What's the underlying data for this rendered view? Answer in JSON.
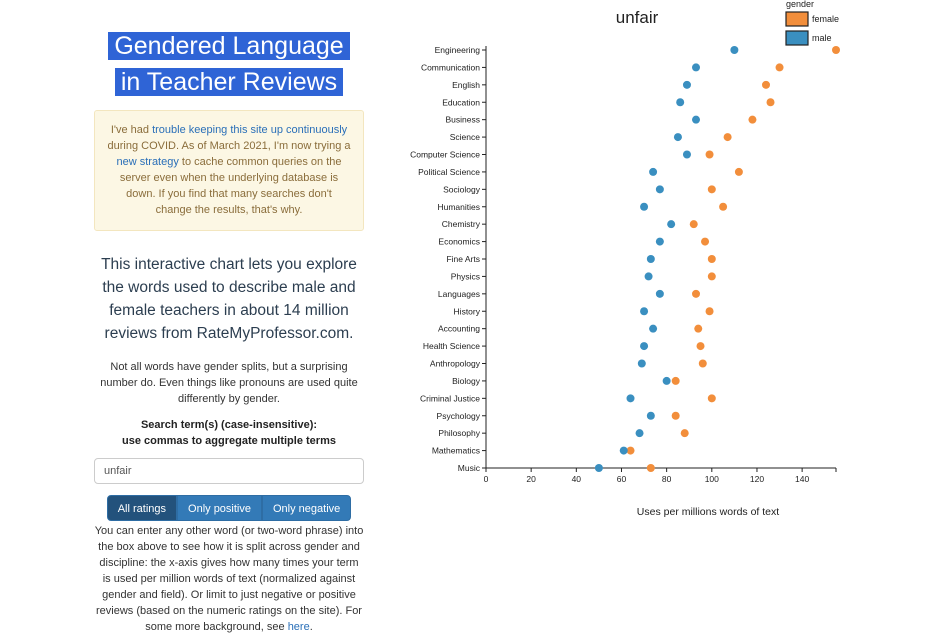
{
  "page": {
    "title_line1": "Gendered Language",
    "title_line2": "in Teacher Reviews",
    "notice": {
      "t1": "I've had ",
      "link1": "trouble keeping this site up continuously",
      "t2": " during COVID. As of March 2021, I'm now trying a ",
      "link2": "new strategy",
      "t3": " to cache common queries on the server even when the underlying database is down. If you find that many searches don't change the results, that's why."
    },
    "intro": "This interactive chart lets you explore the words used to describe male and female teachers in about 14 million reviews from RateMyProfessor.com.",
    "note": "Not all words have gender splits, but a surprising number do. Even things like pronouns are used quite differently by gender.",
    "search_label_1": "Search term(s) (case-insensitive):",
    "search_label_2": "use commas to aggregate multiple terms",
    "search_value": "unfair",
    "buttons": [
      "All ratings",
      "Only positive",
      "Only negative"
    ],
    "description": "You can enter any other word (or two-word phrase) into the box above to see how it is split across gender and discipline: the x-axis gives how many times your term is used per million words of text (normalized against gender and field). Or limit to just negative or positive reviews (based on the numeric ratings on the site). For some more background, see ",
    "description_link": "here",
    "description_end": "."
  },
  "colors": {
    "female": "#f28e3b",
    "male": "#3a8fc0",
    "title_bg": "#2f64d6"
  },
  "chart_data": {
    "type": "scatter",
    "title": "unfair",
    "xlabel": "Uses per millions words of text",
    "legend_title": "gender",
    "legend_position": "top-right",
    "xlim": [
      0,
      155
    ],
    "xticks": [
      0,
      20,
      40,
      60,
      80,
      100,
      120,
      140
    ],
    "categories": [
      "Engineering",
      "Communication",
      "English",
      "Education",
      "Business",
      "Science",
      "Computer Science",
      "Political Science",
      "Sociology",
      "Humanities",
      "Chemistry",
      "Economics",
      "Fine Arts",
      "Physics",
      "Languages",
      "History",
      "Accounting",
      "Health Science",
      "Anthropology",
      "Biology",
      "Criminal Justice",
      "Psychology",
      "Philosophy",
      "Mathematics",
      "Music"
    ],
    "series": [
      {
        "name": "female",
        "values": [
          155,
          130,
          124,
          126,
          118,
          107,
          99,
          112,
          100,
          105,
          92,
          97,
          100,
          100,
          93,
          99,
          94,
          95,
          96,
          84,
          100,
          84,
          88,
          64,
          73
        ]
      },
      {
        "name": "male",
        "values": [
          110,
          93,
          89,
          86,
          93,
          85,
          89,
          74,
          77,
          70,
          82,
          77,
          73,
          72,
          77,
          70,
          74,
          70,
          69,
          80,
          64,
          73,
          68,
          61,
          50
        ]
      }
    ]
  }
}
